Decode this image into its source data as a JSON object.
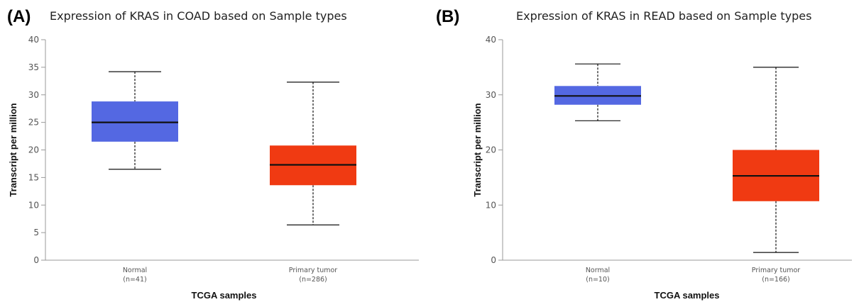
{
  "chart_data": [
    {
      "type": "box",
      "panel_label": "(A)",
      "title": "Expression of KRAS in COAD based on Sample types",
      "xlabel": "TCGA samples",
      "ylabel": "Transcript per million",
      "ylim": [
        0,
        40
      ],
      "yticks": [
        0,
        5,
        10,
        15,
        20,
        25,
        30,
        35,
        40
      ],
      "categories": [
        {
          "name": "Normal",
          "n_label": "(n=41)",
          "color": "#5468e2",
          "min": 16.5,
          "q1": 21.5,
          "median": 25.0,
          "q3": 28.8,
          "max": 34.2
        },
        {
          "name": "Primary tumor",
          "n_label": "(n=286)",
          "color": "#f03a12",
          "min": 6.4,
          "q1": 13.6,
          "median": 17.3,
          "q3": 20.8,
          "max": 32.3
        }
      ]
    },
    {
      "type": "box",
      "panel_label": "(B)",
      "title": "Expression of KRAS in READ based on Sample types",
      "xlabel": "TCGA samples",
      "ylabel": "Transcript per million",
      "ylim": [
        0,
        40
      ],
      "yticks": [
        0,
        10,
        20,
        30,
        40
      ],
      "categories": [
        {
          "name": "Normal",
          "n_label": "(n=10)",
          "color": "#5468e2",
          "min": 25.3,
          "q1": 28.2,
          "median": 29.8,
          "q3": 31.6,
          "max": 35.6
        },
        {
          "name": "Primary tumor",
          "n_label": "(n=166)",
          "color": "#f03a12",
          "min": 1.4,
          "q1": 10.7,
          "median": 15.3,
          "q3": 20.0,
          "max": 35.0
        }
      ]
    }
  ]
}
